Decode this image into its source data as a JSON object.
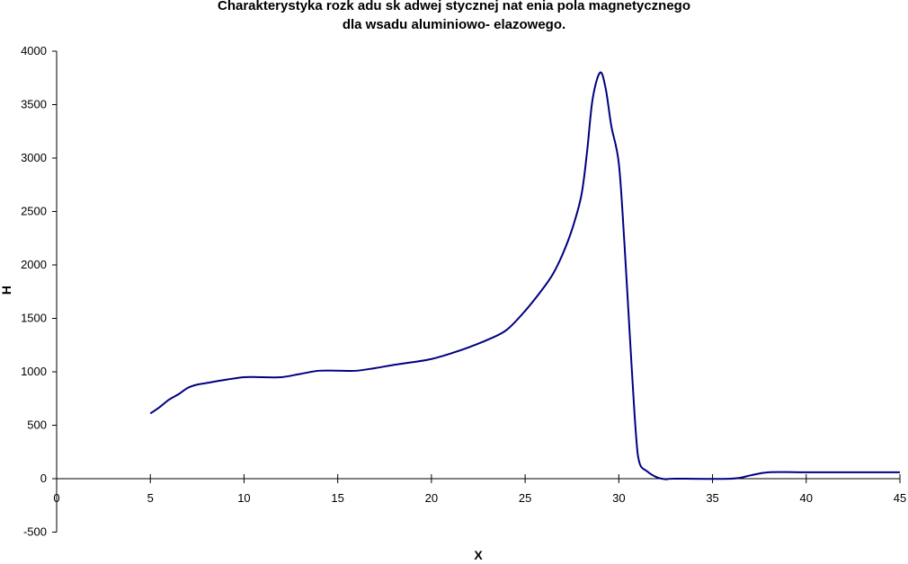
{
  "title_line1": "Charakterystyka rozk adu sk adwej stycznej nat    enia pola magnetycznego",
  "title_line2": "dla wsadu aluminiowo-  elazowego.",
  "colors": {
    "series": "#000080",
    "axis": "#000000",
    "background": "#ffffff"
  },
  "chart_data": {
    "type": "line",
    "title": "Charakterystyka rozk adu sk adwej stycznej nat    enia pola magnetycznego dla wsadu aluminiowo-  elazowego.",
    "xlabel": "X",
    "ylabel": "H",
    "xlim": [
      0,
      45
    ],
    "ylim": [
      -500,
      4000
    ],
    "xticks": [
      0,
      5,
      10,
      15,
      20,
      25,
      30,
      35,
      40,
      45
    ],
    "yticks": [
      -500,
      0,
      500,
      1000,
      1500,
      2000,
      2500,
      3000,
      3500,
      4000
    ],
    "grid": false,
    "legend": "none",
    "series": [
      {
        "name": "H",
        "x": [
          5,
          5.5,
          6,
          6.5,
          7,
          7.5,
          8,
          9,
          10,
          11,
          12,
          13,
          14,
          15,
          16,
          17,
          18,
          19,
          20,
          21,
          22,
          23,
          24,
          25,
          26,
          26.5,
          27,
          27.5,
          28,
          28.3,
          28.6,
          29,
          29.3,
          29.6,
          30,
          30.3,
          30.6,
          30.9,
          31.1,
          31.5,
          32,
          32.5,
          33,
          36,
          37,
          38,
          40,
          45
        ],
        "y": [
          610,
          670,
          740,
          790,
          850,
          880,
          895,
          925,
          950,
          950,
          950,
          980,
          1010,
          1010,
          1010,
          1035,
          1065,
          1090,
          1120,
          1170,
          1230,
          1300,
          1390,
          1570,
          1790,
          1920,
          2100,
          2330,
          2650,
          3050,
          3550,
          3800,
          3650,
          3300,
          2950,
          2200,
          1300,
          450,
          150,
          70,
          15,
          -5,
          0,
          0,
          30,
          60,
          60,
          60
        ]
      }
    ]
  }
}
